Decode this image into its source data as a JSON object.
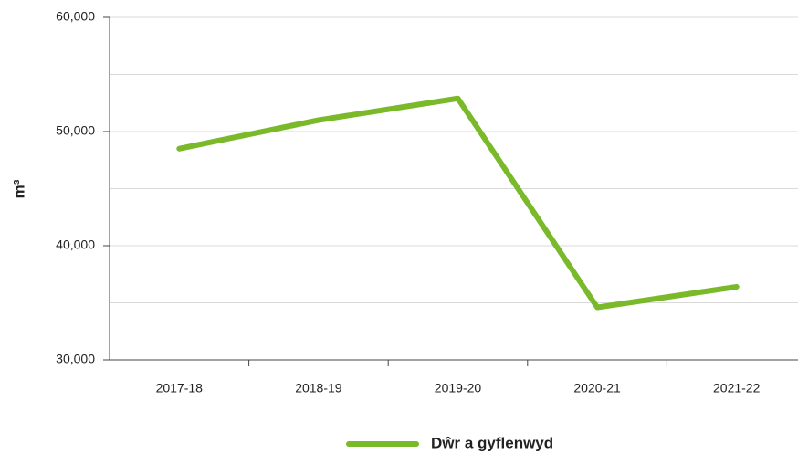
{
  "chart_data": {
    "type": "line",
    "ylabel": "m³",
    "categories": [
      "2017-18",
      "2018-19",
      "2019-20",
      "2020-21",
      "2021-22"
    ],
    "series": [
      {
        "name": "Dŵr a gyflenwyd",
        "color": "#7ab929",
        "values": [
          48500,
          51000,
          52900,
          34600,
          36400
        ]
      }
    ],
    "ylim": [
      30000,
      60000
    ],
    "yticks": [
      {
        "value": 30000,
        "label": "30,000"
      },
      {
        "value": 40000,
        "label": "40,000"
      },
      {
        "value": 50000,
        "label": "50,000"
      },
      {
        "value": 60000,
        "label": "60,000"
      }
    ],
    "minor_yticks": [
      35000,
      45000,
      55000
    ],
    "grid": true,
    "legend": "bottom"
  }
}
